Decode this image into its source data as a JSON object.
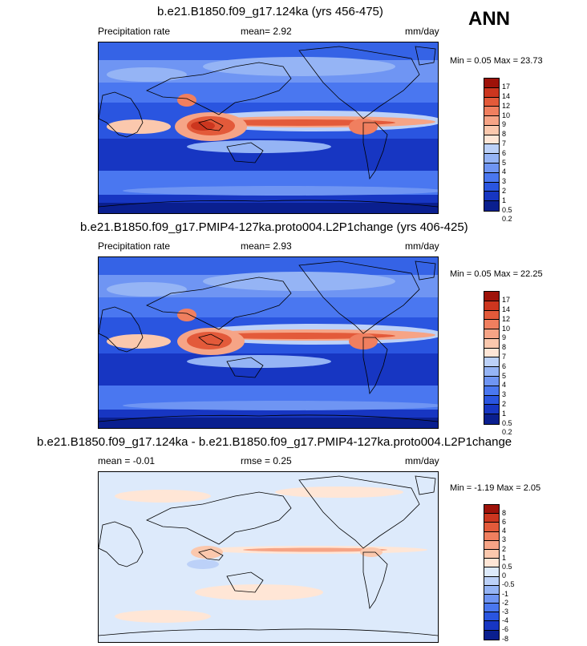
{
  "season": "ANN",
  "units": "mm/day",
  "panels": [
    {
      "title": "b.e21.B1850.f09_g17.124ka (yrs 456-475)",
      "variable": "Precipitation rate",
      "stat1": "mean=  2.92",
      "units": "mm/day",
      "minmax": "Min =   0.05 Max = 23.73"
    },
    {
      "title": "b.e21.B1850.f09_g17.PMIP4-127ka.proto004.L2P1change (yrs 406-425)",
      "variable": "Precipitation rate",
      "stat1": "mean=  2.93",
      "units": "mm/day",
      "minmax": "Min =   0.05 Max = 22.25"
    },
    {
      "title": "b.e21.B1850.f09_g17.124ka - b.e21.B1850.f09_g17.PMIP4-127ka.proto004.L2P1change",
      "variable": "mean =  -0.01",
      "stat1": "rmse =   0.25",
      "units": "mm/day",
      "minmax": "Min =  -1.19 Max =  2.05"
    }
  ],
  "colors": {
    "precip_scale": [
      "#0a1f8f",
      "#1736c2",
      "#2a55e0",
      "#4a77f0",
      "#6f95f3",
      "#95b4f5",
      "#bcd1f8",
      "#ffe6d6",
      "#fbc8ad",
      "#f6a486",
      "#f07f5f",
      "#e35a3a",
      "#cc361f",
      "#9e1209"
    ],
    "diff_scale": [
      "#0a1f8f",
      "#1736c2",
      "#2a55e0",
      "#4a77f0",
      "#6f95f3",
      "#95b4f5",
      "#bcd1f8",
      "#ddeafb",
      "#ffe6d6",
      "#fbc8ad",
      "#f6a486",
      "#f07f5f",
      "#e35a3a",
      "#cc361f",
      "#9e1209"
    ]
  },
  "chart_data": [
    {
      "type": "heatmap",
      "title": "b.e21.B1850.f09_g17.124ka (yrs 456-475)",
      "variable": "Precipitation rate",
      "mean": 2.92,
      "min": 0.05,
      "max": 23.73,
      "units": "mm/day",
      "levels": [
        0.2,
        0.5,
        1,
        2,
        3,
        4,
        5,
        6,
        7,
        8,
        9,
        10,
        12,
        14,
        17
      ]
    },
    {
      "type": "heatmap",
      "title": "b.e21.B1850.f09_g17.PMIP4-127ka.proto004.L2P1change (yrs 406-425)",
      "variable": "Precipitation rate",
      "mean": 2.93,
      "min": 0.05,
      "max": 22.25,
      "units": "mm/day",
      "levels": [
        0.2,
        0.5,
        1,
        2,
        3,
        4,
        5,
        6,
        7,
        8,
        9,
        10,
        12,
        14,
        17
      ]
    },
    {
      "type": "heatmap",
      "title": "b.e21.B1850.f09_g17.124ka - b.e21.B1850.f09_g17.PMIP4-127ka.proto004.L2P1change",
      "mean": -0.01,
      "rmse": 0.25,
      "min": -1.19,
      "max": 2.05,
      "units": "mm/day",
      "levels": [
        -8,
        -6,
        -4,
        -3,
        -2,
        -1,
        -0.5,
        0,
        0.5,
        1,
        2,
        3,
        4,
        6,
        8
      ]
    }
  ],
  "colorbars": [
    {
      "labels": [
        "17",
        "14",
        "12",
        "10",
        "9",
        "8",
        "7",
        "6",
        "5",
        "4",
        "3",
        "2",
        "1",
        "0.5",
        "0.2"
      ]
    },
    {
      "labels": [
        "17",
        "14",
        "12",
        "10",
        "9",
        "8",
        "7",
        "6",
        "5",
        "4",
        "3",
        "2",
        "1",
        "0.5",
        "0.2"
      ]
    },
    {
      "labels": [
        "8",
        "6",
        "4",
        "3",
        "2",
        "1",
        "0.5",
        "0",
        "-0.5",
        "-1",
        "-2",
        "-3",
        "-4",
        "-6",
        "-8"
      ]
    }
  ]
}
